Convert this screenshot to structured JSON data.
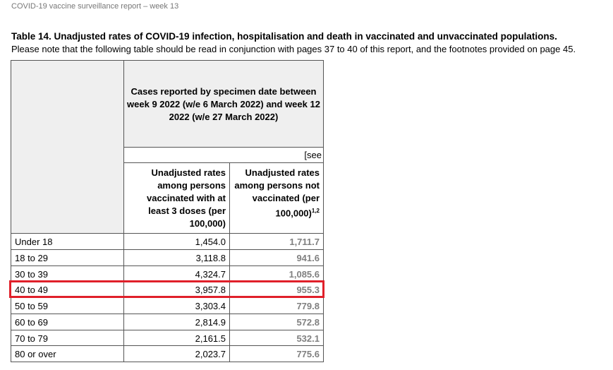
{
  "header": {
    "running_title": "COVID-19 vaccine surveillance report – week 13"
  },
  "title": "Table 14. Unadjusted rates of COVID-19 infection, hospitalisation and death in vaccinated and unvaccinated populations.",
  "note": "Please note that the following table should be read in conjunction with pages 37 to 40 of this report, and the footnotes provided on page 45.",
  "table": {
    "group_header": "Cases reported by specimen date between week 9 2022 (w/e 6 March 2022) and week 12 2022 (w/e 27 March 2022)",
    "see": "[see",
    "columns": [
      "Unadjusted rates among persons vaccinated with at least 3 doses (per 100,000)",
      "Unadjusted rates among persons not vaccinated (per 100,000)"
    ],
    "column_footnote": "1,2",
    "rows": [
      [
        "Under 18",
        "1,454.0",
        "1,711.7"
      ],
      [
        "18 to 29",
        "3,118.8",
        "941.6"
      ],
      [
        "30 to 39",
        "4,324.7",
        "1,085.6"
      ],
      [
        "40 to 49",
        "3,957.8",
        "955.3"
      ],
      [
        "50 to 59",
        "3,303.4",
        "779.8"
      ],
      [
        "60 to 69",
        "2,814.9",
        "572.8"
      ],
      [
        "70 to 79",
        "2,161.5",
        "532.1"
      ],
      [
        "80 or over",
        "2,023.7",
        "775.6"
      ]
    ]
  }
}
